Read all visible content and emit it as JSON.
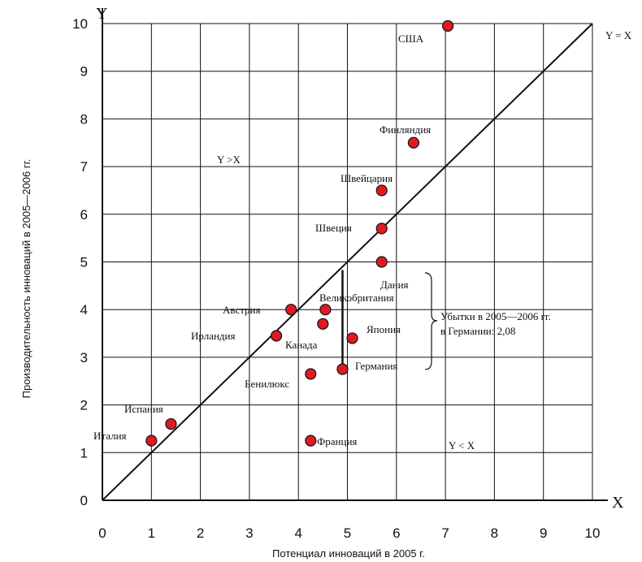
{
  "chart_data": {
    "type": "scatter",
    "xlabel": "Потенциал инноваций в 2005 г.",
    "ylabel": "Производительность инноваций в  2005—2006 гг.",
    "x_axis_letter": "X",
    "y_axis_letter": "Y",
    "xlim": [
      0,
      10
    ],
    "ylim": [
      0,
      10
    ],
    "grid": true,
    "x_ticks": [
      "0",
      "1",
      "2",
      "3",
      "4",
      "5",
      "6",
      "7",
      "8",
      "9",
      "10"
    ],
    "y_ticks": [
      "0",
      "1",
      "2",
      "3",
      "4",
      "5",
      "6",
      "7",
      "8",
      "9",
      "10"
    ],
    "diagonal_label": "Y = X",
    "region_above_label": "Y >X",
    "region_below_label": "Y < X",
    "points": [
      {
        "label": "США",
        "x": 7.05,
        "y": 9.95
      },
      {
        "label": "Финляндия",
        "x": 6.35,
        "y": 7.5
      },
      {
        "label": "Швейцария",
        "x": 5.7,
        "y": 6.5
      },
      {
        "label": "Швеция",
        "x": 5.7,
        "y": 5.7
      },
      {
        "label": "Дания",
        "x": 5.7,
        "y": 5.0
      },
      {
        "label": "Великобритания",
        "x": 4.55,
        "y": 4.0
      },
      {
        "label": "Австрия",
        "x": 3.85,
        "y": 4.0
      },
      {
        "label": "Канада",
        "x": 4.5,
        "y": 3.7
      },
      {
        "label": "Япония",
        "x": 5.1,
        "y": 3.4
      },
      {
        "label": "Ирландия",
        "x": 3.55,
        "y": 3.45
      },
      {
        "label": "Германия",
        "x": 4.9,
        "y": 2.75
      },
      {
        "label": "Бенилюкс",
        "x": 4.25,
        "y": 2.65
      },
      {
        "label": "Испания",
        "x": 1.4,
        "y": 1.6
      },
      {
        "label": "Италия",
        "x": 1.0,
        "y": 1.25
      },
      {
        "label": "Франция",
        "x": 4.25,
        "y": 1.25
      }
    ],
    "loss_annotation": {
      "text_line1": "Убытки в 2005—2006 гг.",
      "text_line2": "в Германии: 2,08",
      "country": "Германия",
      "x": 4.9,
      "y_from": 2.75,
      "y_to": 4.83
    },
    "colors": {
      "point_fill": "#e01a22",
      "point_stroke": "#111111",
      "line": "#111111"
    }
  }
}
